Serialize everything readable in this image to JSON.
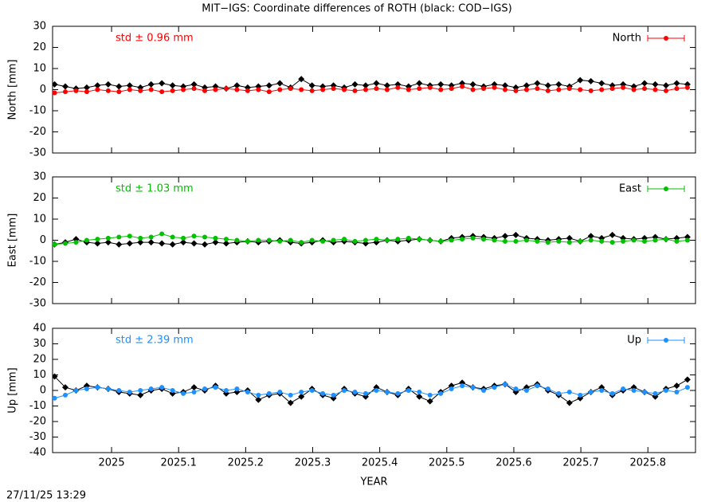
{
  "title": "MIT−IGS: Coordinate differences of ROTH (black: COD−IGS)",
  "timestamp": "27/11/25 13:29",
  "chart_data": [
    {
      "type": "line",
      "ylabel": "North [mm]",
      "annotation": "std ± 0.96 mm",
      "legend": "upper right",
      "xlim": [
        2024.912,
        2025.871
      ],
      "xticks": [
        2025,
        2025.1,
        2025.2,
        2025.3,
        2025.4,
        2025.5,
        2025.6,
        2025.7,
        2025.8
      ],
      "ylim": [
        -30,
        30
      ],
      "yticks": [
        -30,
        -20,
        -10,
        0,
        10,
        20,
        30
      ],
      "x": [
        2024.915,
        2024.931,
        2024.947,
        2024.963,
        2024.979,
        2024.995,
        2025.011,
        2025.027,
        2025.043,
        2025.059,
        2025.075,
        2025.091,
        2025.107,
        2025.123,
        2025.139,
        2025.155,
        2025.171,
        2025.187,
        2025.203,
        2025.219,
        2025.235,
        2025.251,
        2025.267,
        2025.283,
        2025.299,
        2025.315,
        2025.331,
        2025.347,
        2025.363,
        2025.379,
        2025.395,
        2025.411,
        2025.427,
        2025.443,
        2025.459,
        2025.475,
        2025.491,
        2025.507,
        2025.523,
        2025.539,
        2025.555,
        2025.571,
        2025.587,
        2025.603,
        2025.619,
        2025.635,
        2025.651,
        2025.667,
        2025.683,
        2025.699,
        2025.715,
        2025.731,
        2025.747,
        2025.763,
        2025.779,
        2025.795,
        2025.811,
        2025.827,
        2025.843,
        2025.859
      ],
      "series": [
        {
          "color": "#000000",
          "values": [
            2.5,
            1.5,
            0.5,
            1,
            2,
            2.5,
            1.5,
            2,
            1,
            2.5,
            3,
            2,
            1.5,
            2.5,
            1,
            1.5,
            0.5,
            2,
            1,
            1.5,
            2,
            3,
            1,
            5,
            2,
            1.5,
            2,
            1,
            2.5,
            2,
            3,
            2,
            2.5,
            1.5,
            3,
            2,
            2.5,
            2,
            3,
            2.5,
            1.5,
            2.5,
            2,
            1,
            2,
            3,
            2,
            2.5,
            1.5,
            4.5,
            4,
            3,
            2,
            2.5,
            1.5,
            3,
            2.5,
            2,
            3,
            2.5
          ]
        },
        {
          "name": "North",
          "color": "#ff0000",
          "values": [
            -1.5,
            -1,
            -0.5,
            -1,
            0,
            -0.5,
            -1,
            0,
            -0.5,
            0,
            -1,
            -0.5,
            0,
            0.5,
            -0.5,
            0,
            0.5,
            0,
            -0.5,
            0,
            -1,
            0,
            0.5,
            0,
            -0.5,
            0,
            0.5,
            0,
            -0.5,
            0,
            0.5,
            0,
            1,
            0,
            0.5,
            1,
            0,
            0.5,
            1.5,
            0,
            0.5,
            1,
            0,
            -0.5,
            0,
            0.5,
            -0.5,
            0,
            0.5,
            0,
            -0.5,
            0,
            0.5,
            1,
            0,
            0.5,
            0,
            -0.5,
            0.5,
            1
          ]
        }
      ]
    },
    {
      "type": "line",
      "ylabel": "East [mm]",
      "annotation": "std ± 1.03 mm",
      "legend": "upper right",
      "xlim": [
        2024.912,
        2025.871
      ],
      "xticks": [
        2025,
        2025.1,
        2025.2,
        2025.3,
        2025.4,
        2025.5,
        2025.6,
        2025.7,
        2025.8
      ],
      "ylim": [
        -30,
        30
      ],
      "yticks": [
        -30,
        -20,
        -10,
        0,
        10,
        20,
        30
      ],
      "x": [
        2024.915,
        2024.931,
        2024.947,
        2024.963,
        2024.979,
        2024.995,
        2025.011,
        2025.027,
        2025.043,
        2025.059,
        2025.075,
        2025.091,
        2025.107,
        2025.123,
        2025.139,
        2025.155,
        2025.171,
        2025.187,
        2025.203,
        2025.219,
        2025.235,
        2025.251,
        2025.267,
        2025.283,
        2025.299,
        2025.315,
        2025.331,
        2025.347,
        2025.363,
        2025.379,
        2025.395,
        2025.411,
        2025.427,
        2025.443,
        2025.459,
        2025.475,
        2025.491,
        2025.507,
        2025.523,
        2025.539,
        2025.555,
        2025.571,
        2025.587,
        2025.603,
        2025.619,
        2025.635,
        2025.651,
        2025.667,
        2025.683,
        2025.699,
        2025.715,
        2025.731,
        2025.747,
        2025.763,
        2025.779,
        2025.795,
        2025.811,
        2025.827,
        2025.843,
        2025.859
      ],
      "series": [
        {
          "color": "#000000",
          "values": [
            -2,
            -1,
            0.5,
            -1,
            -1.5,
            -1,
            -2,
            -1.5,
            -1,
            -1,
            -1.5,
            -2,
            -1,
            -1.5,
            -2,
            -1,
            -1.5,
            -1,
            -0.5,
            -1,
            -0.5,
            0,
            -1,
            -1.5,
            -1,
            0,
            -1,
            -0.5,
            -1,
            -1.5,
            -1,
            0,
            -0.5,
            0,
            0.5,
            0,
            -0.5,
            1,
            1.5,
            2,
            1.5,
            1,
            2,
            2.5,
            1,
            0.5,
            0,
            0.5,
            1,
            -0.5,
            2,
            1,
            2.5,
            1,
            0.5,
            1,
            1.5,
            0.5,
            1,
            1.5
          ]
        },
        {
          "name": "East",
          "color": "#00c000",
          "values": [
            -2,
            -1.5,
            -1,
            0,
            0.5,
            1,
            1.5,
            2,
            1,
            1.5,
            3,
            1.5,
            1,
            2,
            1.5,
            1,
            0.5,
            0,
            -0.5,
            0,
            0,
            -0.5,
            0,
            -1,
            0,
            -0.5,
            0,
            0.5,
            -0.5,
            0,
            0.5,
            0,
            0.5,
            1,
            0.5,
            0,
            -0.5,
            0,
            0.5,
            1,
            0.5,
            0,
            -0.5,
            -0.5,
            0,
            -0.5,
            -1,
            -0.5,
            -1,
            -0.5,
            0,
            -0.5,
            -1,
            -0.5,
            0,
            -0.5,
            0,
            0.5,
            -0.5,
            0
          ]
        }
      ]
    },
    {
      "type": "line",
      "ylabel": "Up [mm]",
      "xlabel": "YEAR",
      "annotation": "std ± 2.39 mm",
      "legend": "upper right",
      "xlim": [
        2024.912,
        2025.871
      ],
      "xticks": [
        2025,
        2025.1,
        2025.2,
        2025.3,
        2025.4,
        2025.5,
        2025.6,
        2025.7,
        2025.8
      ],
      "ylim": [
        -40,
        40
      ],
      "yticks": [
        -40,
        -30,
        -20,
        -10,
        0,
        10,
        20,
        30,
        40
      ],
      "x": [
        2024.915,
        2024.931,
        2024.947,
        2024.963,
        2024.979,
        2024.995,
        2025.011,
        2025.027,
        2025.043,
        2025.059,
        2025.075,
        2025.091,
        2025.107,
        2025.123,
        2025.139,
        2025.155,
        2025.171,
        2025.187,
        2025.203,
        2025.219,
        2025.235,
        2025.251,
        2025.267,
        2025.283,
        2025.299,
        2025.315,
        2025.331,
        2025.347,
        2025.363,
        2025.379,
        2025.395,
        2025.411,
        2025.427,
        2025.443,
        2025.459,
        2025.475,
        2025.491,
        2025.507,
        2025.523,
        2025.539,
        2025.555,
        2025.571,
        2025.587,
        2025.603,
        2025.619,
        2025.635,
        2025.651,
        2025.667,
        2025.683,
        2025.699,
        2025.715,
        2025.731,
        2025.747,
        2025.763,
        2025.779,
        2025.795,
        2025.811,
        2025.827,
        2025.843,
        2025.859
      ],
      "series": [
        {
          "color": "#000000",
          "values": [
            9,
            2,
            0,
            3,
            2,
            1,
            -1,
            -2,
            -3,
            0,
            1,
            -2,
            -1,
            2,
            0,
            3,
            -2,
            -1,
            0,
            -6,
            -3,
            -2,
            -8,
            -4,
            1,
            -3,
            -5,
            1,
            -2,
            -4,
            2,
            -1,
            -3,
            1,
            -4,
            -7,
            -1,
            3,
            5,
            2,
            1,
            3,
            4,
            -1,
            2,
            4,
            0,
            -3,
            -8,
            -5,
            -1,
            2,
            -3,
            0,
            2,
            -1,
            -4,
            1,
            3,
            7
          ]
        },
        {
          "name": "Up",
          "color": "#1e90ff",
          "values": [
            -5,
            -3,
            0,
            1,
            2,
            1,
            0,
            -1,
            0,
            1,
            2,
            0,
            -2,
            -1,
            1,
            2,
            0,
            1,
            -1,
            -3,
            -2,
            -1,
            -3,
            -1,
            0,
            -2,
            -3,
            0,
            -1,
            -2,
            0,
            -1,
            -2,
            0,
            -1,
            -3,
            -2,
            1,
            3,
            2,
            0,
            2,
            4,
            1,
            0,
            3,
            1,
            -2,
            -1,
            -3,
            -1,
            0,
            -2,
            1,
            0,
            -1,
            -2,
            0,
            -1,
            2
          ]
        }
      ]
    }
  ]
}
